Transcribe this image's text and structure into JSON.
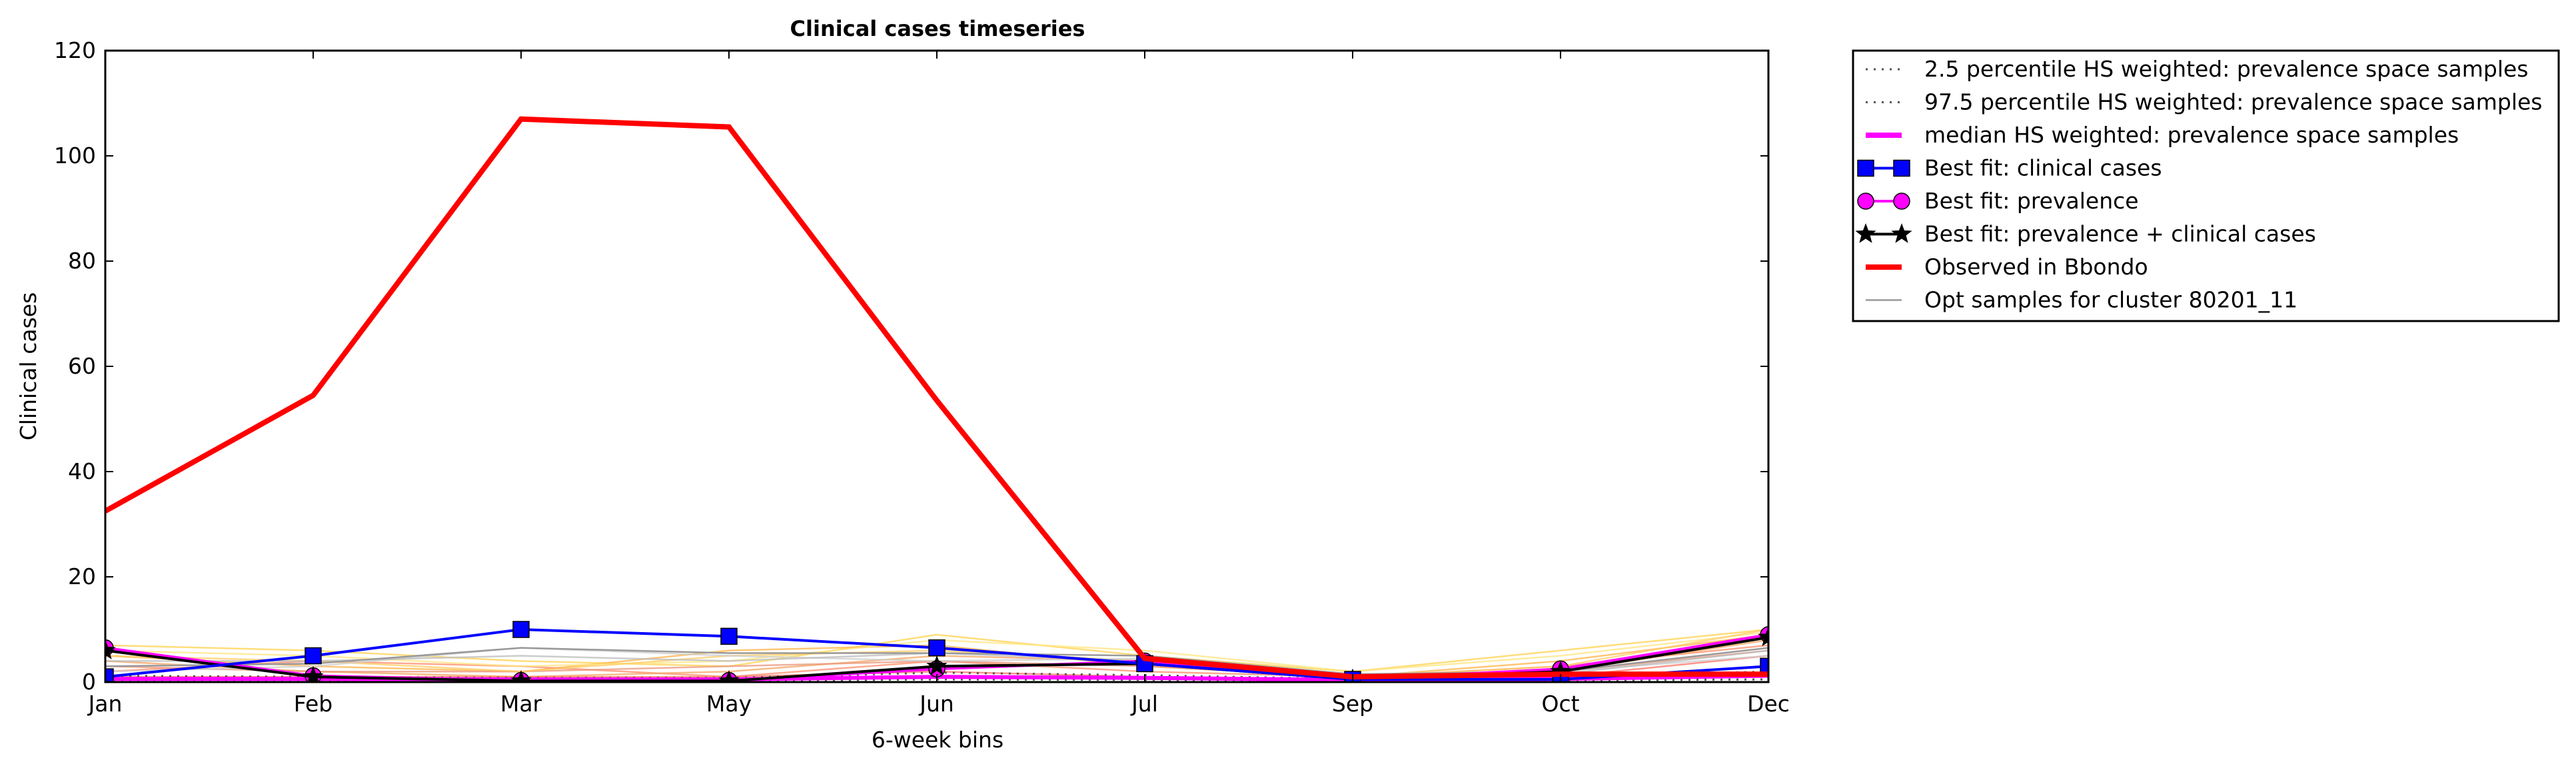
{
  "chart_data": {
    "type": "line",
    "title": "Clinical cases timeseries",
    "xlabel": "6-week bins",
    "ylabel": "Clinical cases",
    "categories": [
      "Jan",
      "Feb",
      "Mar",
      "May",
      "Jun",
      "Jul",
      "Sep",
      "Oct",
      "Dec"
    ],
    "ylim": [
      0,
      120
    ],
    "yticks": [
      0,
      20,
      40,
      60,
      80,
      100,
      120
    ],
    "grid": false,
    "legend_position": "outside-right-top",
    "series": [
      {
        "name": "2.5 percentile HS weighted: prevalence space samples",
        "style": "dotted",
        "color": "#555555",
        "values": [
          0.3,
          0.3,
          0.2,
          0.2,
          0.5,
          0.4,
          0.2,
          0.3,
          0.5
        ]
      },
      {
        "name": "97.5 percentile HS weighted: prevalence space samples",
        "style": "dotted",
        "color": "#555555",
        "values": [
          1.2,
          1.0,
          0.8,
          0.8,
          1.8,
          1.3,
          0.6,
          1.0,
          2.0
        ]
      },
      {
        "name": "median HS weighted: prevalence space samples",
        "style": "solid",
        "color": "#ff00ff",
        "values": [
          0.6,
          0.6,
          0.5,
          0.5,
          1.0,
          0.8,
          0.4,
          0.6,
          1.2
        ]
      },
      {
        "name": "Best fit: clinical cases",
        "style": "solid",
        "color": "#0000ff",
        "marker": "square",
        "values": [
          1,
          5,
          10,
          8.7,
          6.5,
          3.5,
          0.5,
          0.5,
          3
        ]
      },
      {
        "name": "Best fit: prevalence",
        "style": "solid",
        "color": "#ff00ff",
        "marker": "circle",
        "values": [
          6.5,
          1.2,
          0.3,
          0.3,
          2.5,
          4,
          0.5,
          2.5,
          9
        ]
      },
      {
        "name": "Best fit: prevalence + clinical cases",
        "style": "solid",
        "color": "#000000",
        "marker": "star",
        "values": [
          6,
          1,
          0.2,
          0.2,
          3,
          3.5,
          0.5,
          2,
          8.5
        ]
      },
      {
        "name": "Observed in Bbondo",
        "style": "solid",
        "color": "#ff0000",
        "values": [
          32.5,
          54.5,
          107,
          105.5,
          53.5,
          4.5,
          1,
          1.5,
          1.5
        ]
      },
      {
        "name": "Opt samples for cluster 80201_11",
        "style": "solid",
        "color": "#999999",
        "values": [
          3,
          3.5,
          6.5,
          5.5,
          5.5,
          5,
          1.5,
          2,
          6.5
        ]
      }
    ],
    "background_samples": [
      {
        "color": "#ffd24d",
        "values": [
          7,
          6,
          4,
          3,
          9,
          5,
          2,
          6,
          10
        ]
      },
      {
        "color": "#ffb347",
        "values": [
          5,
          3,
          2,
          6,
          7,
          3,
          1,
          4,
          9
        ]
      },
      {
        "color": "#ff8c69",
        "values": [
          2,
          4,
          3,
          1,
          4,
          2,
          1,
          3,
          7
        ]
      },
      {
        "color": "#f4a460",
        "values": [
          4,
          2,
          1,
          2,
          5,
          4,
          1,
          2,
          8
        ]
      },
      {
        "color": "#ffe680",
        "values": [
          6,
          5,
          3,
          4,
          8,
          6,
          2,
          5,
          9.5
        ]
      },
      {
        "color": "#ff6f61",
        "values": [
          1,
          1,
          1,
          1,
          2,
          1,
          0.5,
          1,
          5
        ]
      },
      {
        "color": "#e9967a",
        "values": [
          3,
          2,
          2,
          3,
          4,
          3,
          1,
          2,
          6
        ]
      },
      {
        "color": "#ffcc66",
        "values": [
          5,
          4,
          2,
          5,
          6,
          4,
          1,
          3,
          10
        ]
      },
      {
        "color": "#cccccc",
        "values": [
          2,
          3,
          6.5,
          5,
          4,
          4.5,
          1,
          2,
          5
        ]
      },
      {
        "color": "#bbbbbb",
        "values": [
          4,
          4,
          5,
          4,
          5.5,
          4,
          1.5,
          1.5,
          6
        ]
      }
    ]
  }
}
